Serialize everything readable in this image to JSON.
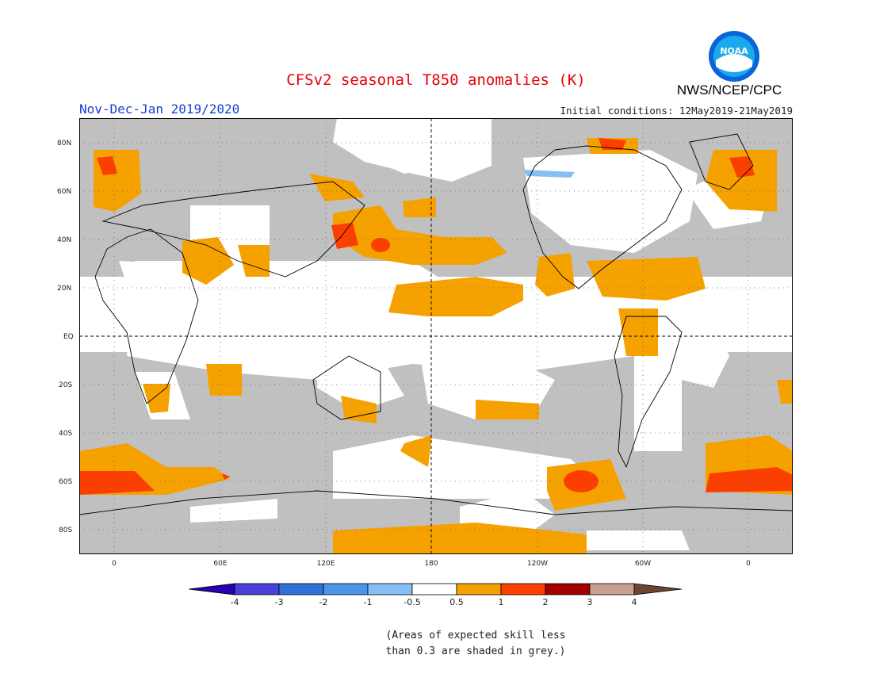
{
  "title": "CFSv2 seasonal T850 anomalies (K)",
  "subtitle": "Nov-Dec-Jan 2019/2020",
  "initial_conditions": "Initial conditions: 12May2019-21May2019",
  "agency": "NWS/NCEP/CPC",
  "logo_text": "NOAA",
  "lat_labels": [
    "80N",
    "60N",
    "40N",
    "20N",
    "EQ",
    "20S",
    "40S",
    "60S",
    "80S"
  ],
  "lon_labels": [
    "0",
    "60E",
    "120E",
    "180",
    "120W",
    "60W",
    "0"
  ],
  "colorbar": {
    "labels": [
      "-4",
      "-3",
      "-2",
      "-1",
      "-0.5",
      "0.5",
      "1",
      "2",
      "3",
      "4"
    ],
    "colors": [
      "#2a00b0",
      "#4a3fd6",
      "#2f6fd8",
      "#4a95ea",
      "#86bff5",
      "#ffffff",
      "#f5a100",
      "#fb3f00",
      "#a50000",
      "#c9a08f",
      "#6b4533"
    ]
  },
  "note_line1": "(Areas of expected skill less",
  "note_line2": "than 0.3 are shaded in grey.)"
}
